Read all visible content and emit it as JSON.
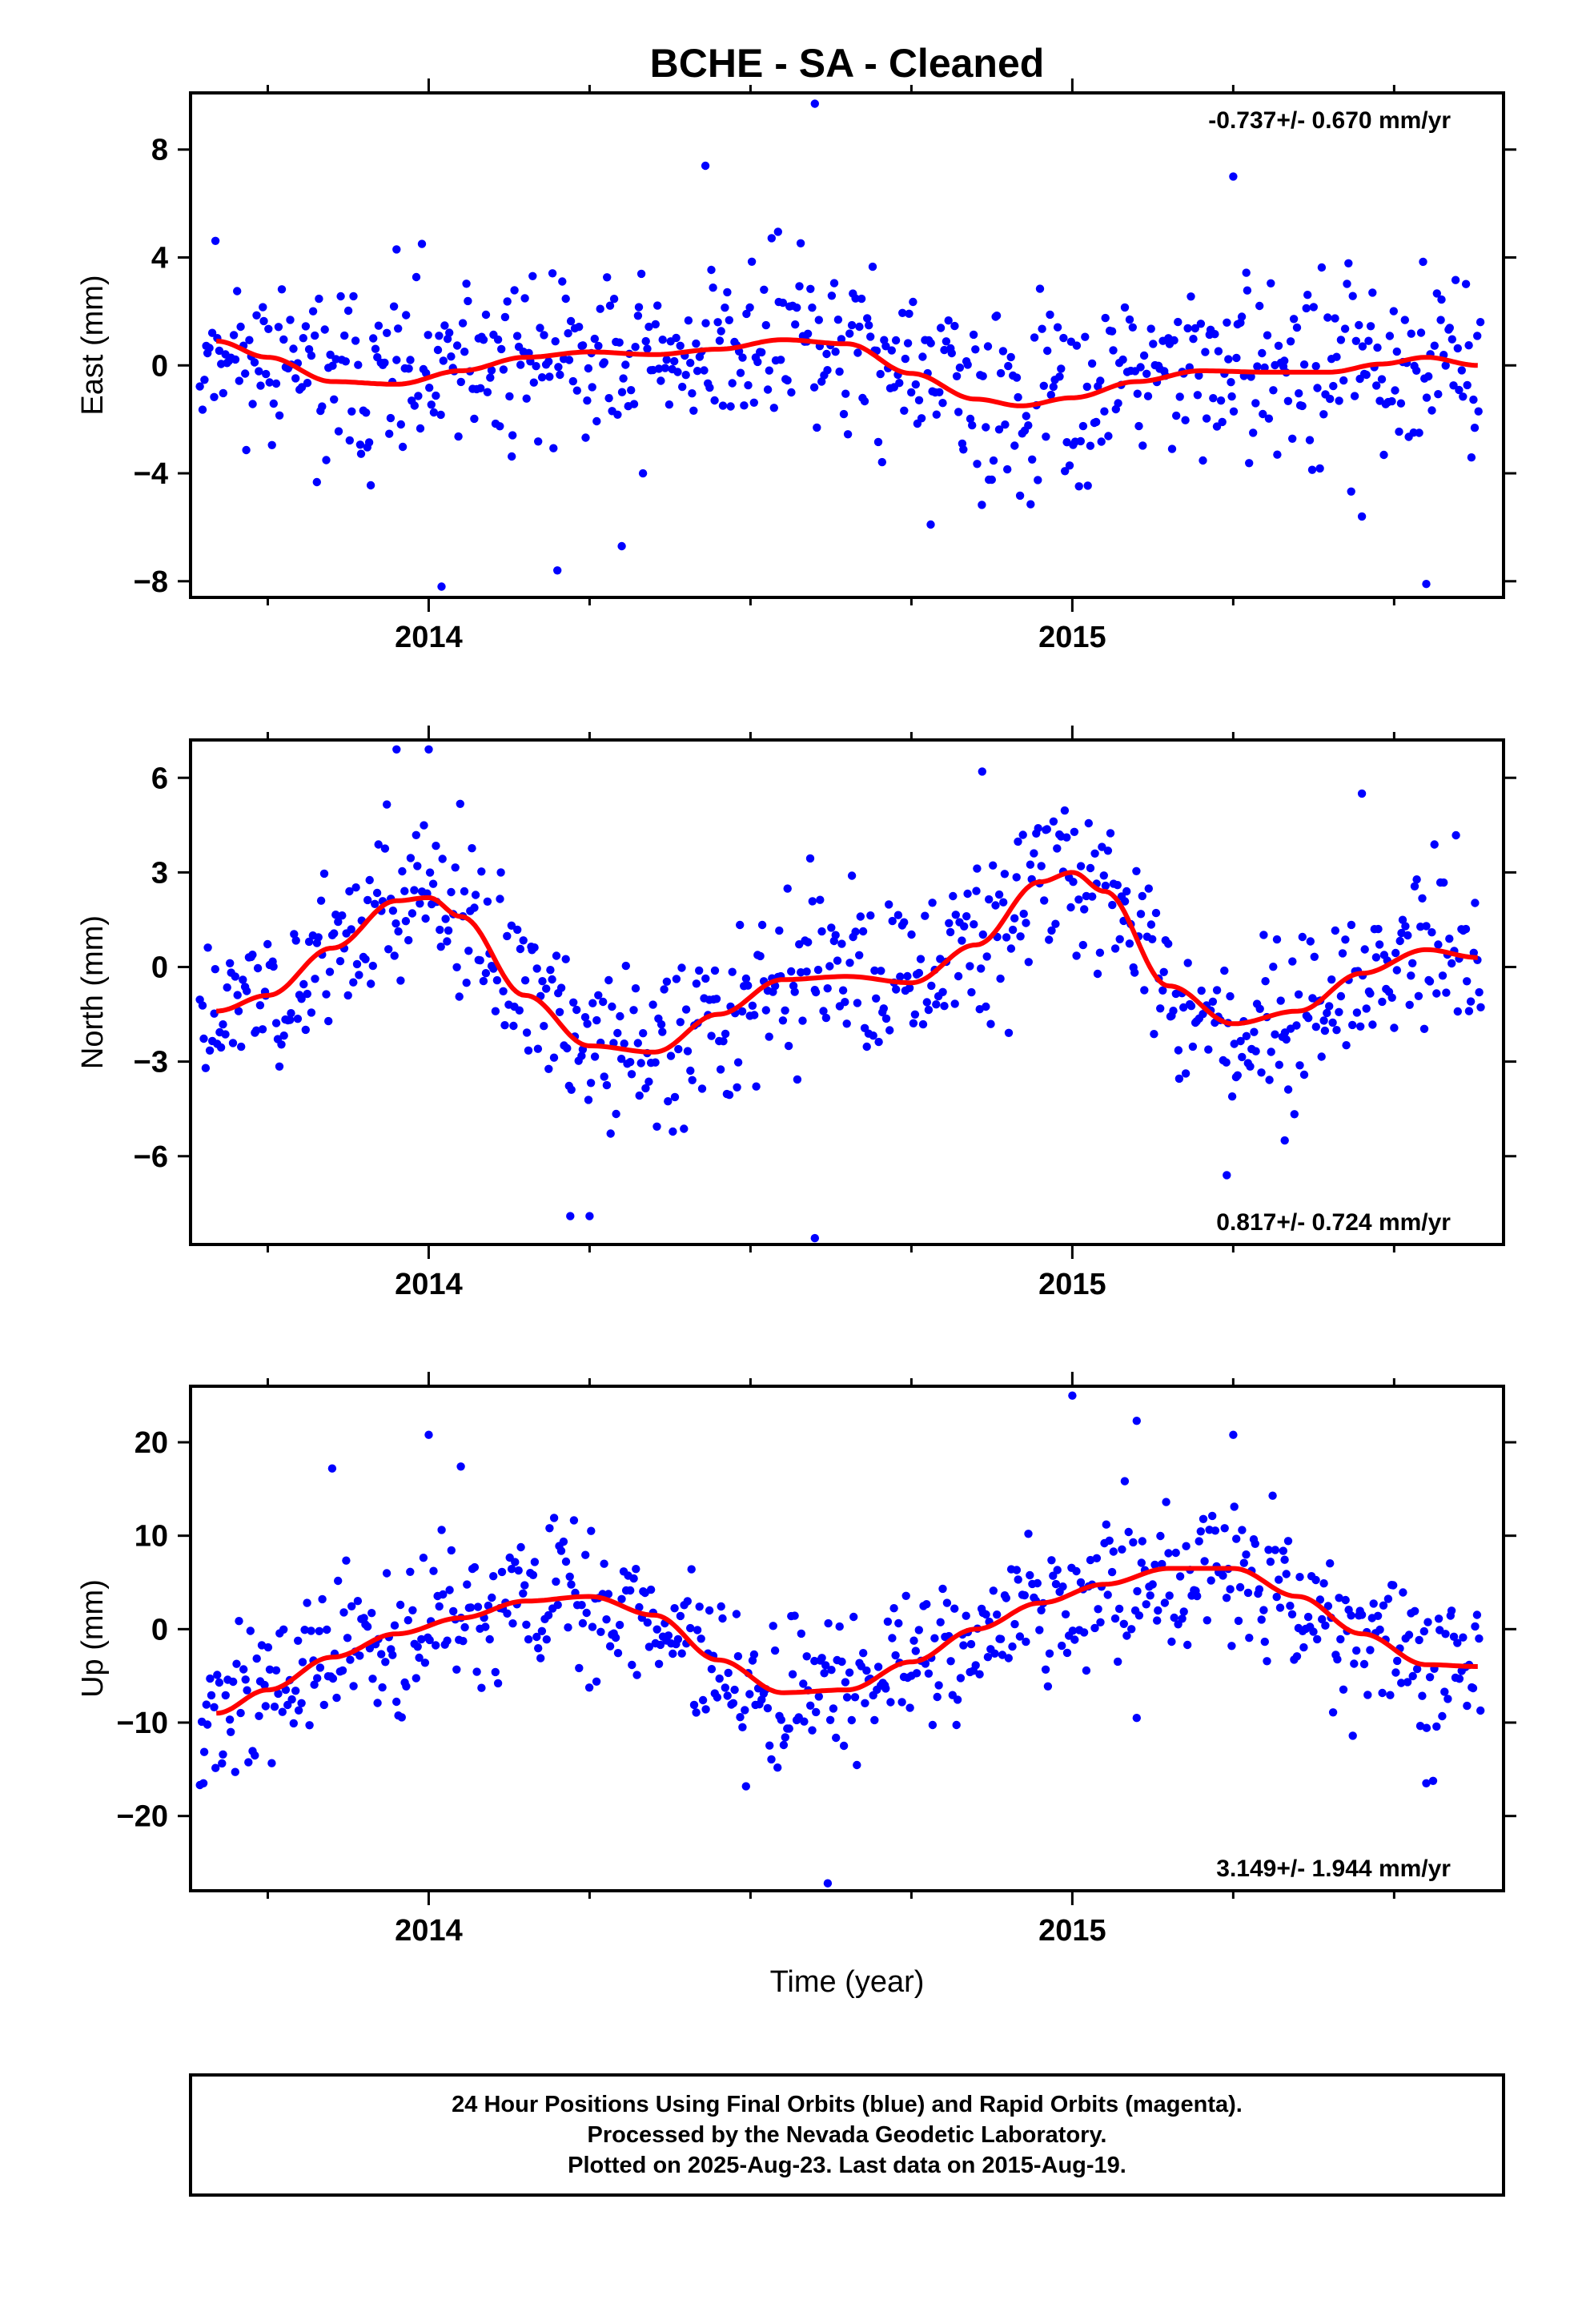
{
  "title": "BCHE  - SA - Cleaned",
  "xlabel": "Time (year)",
  "footer": [
    "24 Hour Positions Using Final Orbits (blue) and Rapid Orbits (magenta).",
    "Processed by the Nevada Geodetic Laboratory.",
    "Plotted on 2025-Aug-23. Last data on 2015-Aug-19."
  ],
  "colors": {
    "points": "#0000ff",
    "fit": "#ff0000",
    "frame": "#000000"
  },
  "chart_data": [
    {
      "type": "scatter",
      "ylabel": "East (mm)",
      "rate": "-0.737+/- 0.670 mm/yr",
      "rate_position": "top-right",
      "xlim": [
        2013.63,
        2015.67
      ],
      "ylim": [
        -8.6,
        10.1
      ],
      "yticks": [
        -8,
        -4,
        0,
        4,
        8
      ],
      "ytick_labels": [
        "−8",
        "−4",
        "0",
        "4",
        "8"
      ],
      "xticks": [
        2014,
        2015
      ],
      "xtick_labels": [
        "2014",
        "2015"
      ],
      "grid": false,
      "series": [
        {
          "kind": "points",
          "noise": 1.7,
          "seed": 11,
          "outliers": [
            [
              2014.6,
              9.7
            ],
            [
              2013.95,
              4.3
            ],
            [
              2014.02,
              -8.2
            ],
            [
              2014.3,
              -6.7
            ],
            [
              2014.2,
              -7.6
            ],
            [
              2015.25,
              7.0
            ],
            [
              2014.78,
              -5.9
            ],
            [
              2015.55,
              -8.1
            ],
            [
              2014.43,
              7.4
            ],
            [
              2015.45,
              -5.6
            ]
          ]
        },
        {
          "kind": "fit",
          "x": [
            2013.67,
            2013.75,
            2013.85,
            2013.95,
            2014.05,
            2014.15,
            2014.25,
            2014.35,
            2014.45,
            2014.55,
            2014.65,
            2014.75,
            2014.85,
            2014.92,
            2015.0,
            2015.1,
            2015.2,
            2015.3,
            2015.4,
            2015.48,
            2015.55,
            2015.63
          ],
          "y": [
            0.9,
            0.3,
            -0.6,
            -0.7,
            -0.2,
            0.3,
            0.5,
            0.4,
            0.6,
            0.95,
            0.8,
            -0.3,
            -1.25,
            -1.5,
            -1.2,
            -0.6,
            -0.2,
            -0.25,
            -0.25,
            0.05,
            0.3,
            0.0
          ]
        }
      ]
    },
    {
      "type": "scatter",
      "ylabel": "North (mm)",
      "rate": "0.817+/- 0.724 mm/yr",
      "rate_position": "bottom-right",
      "xlim": [
        2013.63,
        2015.67
      ],
      "ylim": [
        -8.8,
        7.2
      ],
      "yticks": [
        -6,
        -3,
        0,
        3,
        6
      ],
      "ytick_labels": [
        "−6",
        "−3",
        "0",
        "3",
        "6"
      ],
      "xticks": [
        2014,
        2015
      ],
      "xtick_labels": [
        "2014",
        "2015"
      ],
      "grid": false,
      "series": [
        {
          "kind": "points",
          "noise": 1.3,
          "seed": 23,
          "outliers": [
            [
              2013.95,
              6.9
            ],
            [
              2014.0,
              6.9
            ],
            [
              2014.6,
              -8.6
            ],
            [
              2014.22,
              -7.9
            ],
            [
              2014.25,
              -7.9
            ],
            [
              2015.24,
              -6.6
            ],
            [
              2015.45,
              5.5
            ],
            [
              2014.86,
              6.2
            ],
            [
              2015.33,
              -5.5
            ]
          ]
        },
        {
          "kind": "fit",
          "x": [
            2013.67,
            2013.75,
            2013.85,
            2013.95,
            2014.0,
            2014.05,
            2014.15,
            2014.25,
            2014.35,
            2014.45,
            2014.55,
            2014.65,
            2014.75,
            2014.85,
            2014.95,
            2015.0,
            2015.05,
            2015.15,
            2015.25,
            2015.35,
            2015.45,
            2015.55,
            2015.63
          ],
          "y": [
            -1.4,
            -0.9,
            0.6,
            2.1,
            2.2,
            1.6,
            -0.9,
            -2.5,
            -2.7,
            -1.5,
            -0.4,
            -0.3,
            -0.5,
            0.7,
            2.7,
            3.0,
            2.4,
            -0.6,
            -1.8,
            -1.4,
            -0.2,
            0.55,
            0.3
          ]
        }
      ]
    },
    {
      "type": "scatter",
      "ylabel": "Up (mm)",
      "rate": "3.149+/- 1.944 mm/yr",
      "rate_position": "bottom-right",
      "xlim": [
        2013.63,
        2015.67
      ],
      "ylim": [
        -28,
        26
      ],
      "yticks": [
        -20,
        -10,
        0,
        10,
        20
      ],
      "ytick_labels": [
        "−20",
        "−10",
        "0",
        "10",
        "20"
      ],
      "xticks": [
        2014,
        2015
      ],
      "xtick_labels": [
        "2014",
        "2015"
      ],
      "grid": false,
      "series": [
        {
          "kind": "points",
          "noise": 4.0,
          "seed": 37,
          "outliers": [
            [
              2015.0,
              25.0
            ],
            [
              2014.0,
              20.8
            ],
            [
              2014.62,
              -27.2
            ],
            [
              2015.1,
              22.3
            ],
            [
              2015.25,
              20.8
            ],
            [
              2013.65,
              -16.5
            ],
            [
              2015.55,
              -16.5
            ],
            [
              2015.1,
              -9.5
            ],
            [
              2013.85,
              17.2
            ],
            [
              2014.05,
              17.4
            ]
          ]
        },
        {
          "kind": "fit",
          "x": [
            2013.67,
            2013.75,
            2013.85,
            2013.95,
            2014.05,
            2014.15,
            2014.25,
            2014.35,
            2014.45,
            2014.55,
            2014.65,
            2014.75,
            2014.85,
            2014.95,
            2015.05,
            2015.15,
            2015.25,
            2015.35,
            2015.45,
            2015.55,
            2015.63
          ],
          "y": [
            -9.0,
            -6.5,
            -3.0,
            -0.5,
            1.2,
            3.0,
            3.5,
            1.5,
            -3.3,
            -6.8,
            -6.5,
            -3.5,
            0.0,
            2.8,
            4.8,
            6.5,
            6.5,
            3.5,
            -0.5,
            -3.8,
            -4.0
          ]
        }
      ]
    }
  ]
}
